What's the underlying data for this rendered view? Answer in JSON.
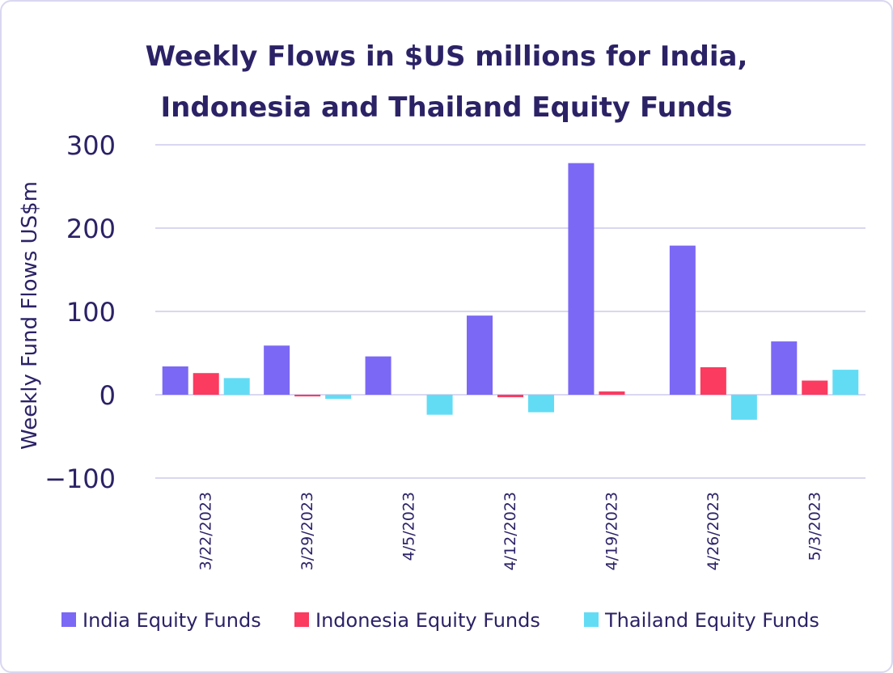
{
  "chart_data": {
    "type": "bar",
    "title_lines": [
      "Weekly Flows in $US millions for India,",
      "Indonesia and Thailand Equity Funds"
    ],
    "xlabel": "",
    "ylabel": "Weekly Fund Flows US$m",
    "ylim": [
      -100,
      300
    ],
    "yticks": [
      300,
      200,
      100,
      0,
      -100
    ],
    "ytick_labels": [
      "300",
      "200",
      "100",
      "0",
      "−100"
    ],
    "grid": true,
    "legend_position": "bottom",
    "categories": [
      "3/22/2023",
      "3/29/2023",
      "4/5/2023",
      "4/12/2023",
      "4/19/2023",
      "4/26/2023",
      "5/3/2023"
    ],
    "series": [
      {
        "name": "India Equity Funds",
        "color": "#7b68f5",
        "values": [
          34,
          59,
          46,
          95,
          278,
          179,
          64
        ]
      },
      {
        "name": "Indonesia Equity Funds",
        "color": "#fb3b5f",
        "values": [
          26,
          -2,
          0,
          -3,
          4,
          33,
          17
        ]
      },
      {
        "name": "Thailand Equity Funds",
        "color": "#62dcf5",
        "values": [
          20,
          -5,
          -24,
          -21,
          0,
          -30,
          30
        ]
      }
    ]
  }
}
